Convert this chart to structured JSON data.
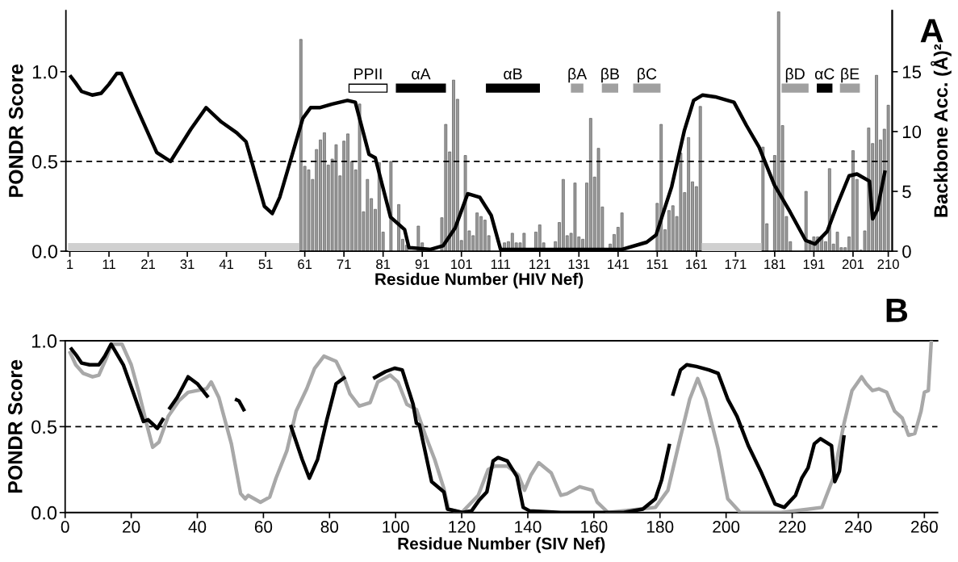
{
  "chart_data": [
    {
      "type": "line",
      "xlabel": "Residue Number (HIV Nef)",
      "ylabel": "PONDR Score",
      "y2label": "Backbone Acc. (Å)²",
      "xlim": [
        0,
        211
      ],
      "xticks": [
        1,
        11,
        21,
        31,
        41,
        51,
        61,
        71,
        81,
        91,
        101,
        111,
        121,
        131,
        141,
        151,
        161,
        171,
        181,
        191,
        201,
        210
      ],
      "ylim": [
        0,
        1.34
      ],
      "yticks": [
        {
          "value": 0,
          "label": "0.0"
        },
        {
          "value": 0.5,
          "label": "0.5"
        },
        {
          "value": 1,
          "label": "1.0"
        }
      ],
      "y2lim": [
        0,
        20.1
      ],
      "y2ticks": [
        0,
        5,
        10,
        15
      ],
      "grid": false,
      "marker": "none",
      "line_style": "solid",
      "annotations": [
        "A"
      ],
      "ref_lines": [
        {
          "axis": "y",
          "value": 0.5,
          "label": null,
          "color": "#000000",
          "line_style": "dashed"
        }
      ],
      "series": [
        {
          "type": "bar",
          "axis": "y2",
          "color": "#9a9a9a",
          "x": [
            60,
            61,
            62,
            63,
            64,
            65,
            66,
            67,
            68,
            69,
            70,
            71,
            72,
            73,
            74,
            75,
            76,
            77,
            78,
            79,
            80,
            81,
            83,
            85,
            86,
            87,
            90,
            91,
            92,
            94,
            96,
            97,
            98,
            99,
            100,
            101,
            102,
            103,
            104,
            105,
            106,
            107,
            108,
            112,
            113,
            114,
            115,
            116,
            117,
            120,
            121,
            122,
            125,
            126,
            127,
            128,
            129,
            130,
            131,
            132,
            133,
            134,
            135,
            136,
            137,
            139,
            140,
            141,
            142,
            151,
            152,
            153,
            154,
            155,
            156,
            157,
            158,
            159,
            160,
            161,
            162,
            178,
            179,
            181,
            182,
            183,
            184,
            185,
            189,
            190,
            191,
            192,
            193,
            194,
            195,
            196,
            197,
            198,
            199,
            200,
            201,
            202,
            203,
            204,
            205,
            206,
            207,
            208,
            209,
            210
          ],
          "values": [
            17.7,
            7.1,
            6.8,
            6.0,
            8.5,
            9.3,
            9.9,
            7.2,
            7.7,
            8.9,
            6.3,
            9.2,
            9.8,
            7.5,
            6.8,
            12.3,
            3.3,
            6.0,
            4.4,
            3.5,
            7.4,
            1.6,
            7.5,
            3.9,
            1.0,
            0.5,
            2.1,
            0.7,
            null,
            null,
            2.8,
            10.6,
            8.3,
            14.3,
            12.7,
            0.9,
            8.0,
            1.7,
            1.3,
            3.2,
            2.9,
            2.6,
            1.3,
            0.7,
            0.8,
            1.5,
            0.7,
            0.7,
            1.5,
            1.6,
            2.2,
            0.7,
            0.8,
            2.4,
            6.0,
            1.3,
            1.5,
            5.7,
            1.2,
            1.0,
            5.7,
            11.1,
            6.2,
            8.6,
            3.7,
            0.6,
            1.4,
            2.0,
            3.2,
            4.0,
            10.6,
            1.8,
            3.4,
            3.8,
            2.9,
            8.2,
            4.9,
            9.5,
            5.8,
            5.4,
            12.1,
            8.7,
            2.3,
            8.0,
            20,
            10.5,
            2.9,
            0.8,
            5.0,
            0.9,
            1.2,
            1.2,
            1.2,
            0.8,
            6.9,
            0.6,
            1.6,
            0.3,
            0.3,
            1.2,
            8.4,
            6.0,
            0.1,
            1.7,
            10.3,
            9.0,
            14.7,
            9.3,
            10.2,
            12.2
          ]
        },
        {
          "color": "#000000",
          "x": [
            1,
            2.4,
            4,
            6.7,
            9,
            11,
            13,
            14.2,
            19.3,
            23.2,
            26.7,
            31.9,
            35.8,
            39.7,
            43.6,
            46,
            50.7,
            52.7,
            54.6,
            60.5,
            62.5,
            64.8,
            68,
            71.9,
            73.9,
            77.4,
            79,
            82.9,
            86.5,
            87.6,
            93.1,
            96.3,
            99.4,
            102.6,
            105.7,
            108.6,
            111,
            126,
            142,
            148.3,
            150.7,
            154.7,
            157.9,
            160.3,
            162.6,
            165.8,
            170.6,
            173.8,
            177,
            180.9,
            184.9,
            188.9,
            191.3,
            194.4,
            196.8,
            200,
            202,
            205.2,
            206,
            207.2,
            209.2
          ],
          "values": [
            0.98,
            0.94,
            0.89,
            0.87,
            0.88,
            0.93,
            0.99,
            0.99,
            0.74,
            0.55,
            0.5,
            0.68,
            0.8,
            0.72,
            0.66,
            0.61,
            0.25,
            0.21,
            0.3,
            0.74,
            0.8,
            0.8,
            0.82,
            0.84,
            0.83,
            0.54,
            0.52,
            0.19,
            0.12,
            0.02,
            0.01,
            0.03,
            0.13,
            0.32,
            0.3,
            0.2,
            0.01,
            0.01,
            0.01,
            0.05,
            0.09,
            0.36,
            0.67,
            0.84,
            0.87,
            0.86,
            0.83,
            0.7,
            0.58,
            0.37,
            0.22,
            0.06,
            0.04,
            0.11,
            0.25,
            0.42,
            0.43,
            0.39,
            0.18,
            0.23,
            0.45
          ]
        }
      ]
    },
    {
      "type": "bar",
      "orientation": "horizontal",
      "categories": [
        null,
        null
      ],
      "xlim": [
        0,
        211
      ],
      "series": [
        {
          "name": "PPII",
          "color": "#ffffff",
          "base": [
            72.3,
            null
          ],
          "values": [
            9.7,
            null
          ]
        },
        {
          "name": "αA",
          "color": "#000000",
          "base": [
            84.4,
            null
          ],
          "values": [
            12.5,
            null
          ]
        },
        {
          "name": "αB",
          "color": "#000000",
          "base": [
            107.4,
            null
          ],
          "values": [
            13.5,
            null
          ]
        },
        {
          "name": "βA",
          "color": "#a0a0a0",
          "base": [
            129.1,
            null
          ],
          "values": [
            2.9,
            null
          ]
        },
        {
          "name": "βB",
          "color": "#a0a0a0",
          "base": [
            137,
            null
          ],
          "values": [
            3.9,
            null
          ]
        },
        {
          "name": "βC",
          "color": "#a0a0a0",
          "base": [
            145,
            null
          ],
          "values": [
            6.7,
            null
          ]
        },
        {
          "name": "βD",
          "color": "#a0a0a0",
          "base": [
            182.9,
            null
          ],
          "values": [
            6.6,
            null
          ]
        },
        {
          "name": "αC",
          "color": "#000000",
          "base": [
            191.9,
            null
          ],
          "values": [
            3.7,
            null
          ]
        },
        {
          "name": "βE",
          "color": "#a0a0a0",
          "base": [
            197.8,
            null
          ],
          "values": [
            4.8,
            null
          ]
        },
        {
          "color": "#d0d0d0",
          "base": [
            null,
            0.7
          ],
          "values": [
            null,
            58.8
          ]
        },
        {
          "color": "#d0d0d0",
          "base": [
            null,
            162.5
          ],
          "values": [
            null,
            15
          ]
        }
      ]
    },
    {
      "type": "line",
      "xlabel": "Residue Number (SIV Nef)",
      "ylabel": "PONDR Score",
      "xlim": [
        0,
        264
      ],
      "xticks": [
        0,
        20,
        40,
        60,
        80,
        100,
        120,
        140,
        160,
        180,
        200,
        220,
        240,
        260
      ],
      "ylim": [
        0,
        1
      ],
      "yticks": [
        {
          "value": 0,
          "label": "0.0"
        },
        {
          "value": 0.5,
          "label": "0.5"
        },
        {
          "value": 1,
          "label": "1.0"
        }
      ],
      "grid": false,
      "marker": "none",
      "line_style": "solid",
      "annotations": [
        "B"
      ],
      "ref_lines": [
        {
          "axis": "y",
          "value": 0.5,
          "label": null,
          "color": "#000000",
          "line_style": "dashed"
        }
      ],
      "series": [
        {
          "color": "#a8a8a8",
          "x": [
            1.3,
            3.2,
            5.5,
            8.3,
            10.2,
            12.5,
            14.1,
            17.2,
            20,
            22.3,
            24.6,
            26.5,
            28.4,
            31.2,
            34.4,
            37.2,
            40,
            42.8,
            44.2,
            46.5,
            50.3,
            53.1,
            54.5,
            55.4,
            59.1,
            61.9,
            63.8,
            67.1,
            69.9,
            73.1,
            75.5,
            78.3,
            82,
            84.3,
            86.2,
            89,
            92.3,
            94.6,
            98.4,
            100.7,
            103.4,
            106.3,
            109,
            111.8,
            114.6,
            116,
            120,
            125,
            128,
            130,
            133.8,
            137.1,
            139,
            141,
            143.3,
            147.1,
            150,
            151.9,
            155.7,
            159.5,
            161,
            164.3,
            178.6,
            182.4,
            186.2,
            189,
            191.4,
            193.8,
            197.6,
            200.5,
            204.3,
            216.7,
            229,
            232.4,
            235.7,
            238.1,
            241,
            242.4,
            244.3,
            246.2,
            248.6,
            251,
            253.3,
            255.2,
            257.1,
            259,
            260,
            261.2,
            262.1
          ],
          "values": [
            0.94,
            0.86,
            0.81,
            0.79,
            0.8,
            0.9,
            0.98,
            0.98,
            0.86,
            0.7,
            0.52,
            0.38,
            0.41,
            0.56,
            0.65,
            0.7,
            0.71,
            0.72,
            0.76,
            0.67,
            0.4,
            0.11,
            0.08,
            0.1,
            0.06,
            0.09,
            0.2,
            0.36,
            0.59,
            0.72,
            0.84,
            0.91,
            0.88,
            0.79,
            0.69,
            0.62,
            0.64,
            0.76,
            0.8,
            0.76,
            0.63,
            0.6,
            0.45,
            0.31,
            0.14,
            0.02,
            0.0,
            0.1,
            0.25,
            0.27,
            0.27,
            0.22,
            0.13,
            0.22,
            0.29,
            0.23,
            0.1,
            0.11,
            0.15,
            0.13,
            0.06,
            0.0,
            0.03,
            0.13,
            0.44,
            0.66,
            0.78,
            0.66,
            0.37,
            0.08,
            0.0,
            0.0,
            0.03,
            0.2,
            0.52,
            0.71,
            0.79,
            0.75,
            0.71,
            0.72,
            0.7,
            0.59,
            0.55,
            0.45,
            0.46,
            0.59,
            0.7,
            0.71,
            1.0
          ]
        },
        {
          "color": "#000000",
          "x": [
            1.6,
            3.6,
            5,
            7.4,
            10.2,
            12,
            13.9,
            17.6,
            20.4,
            23.7,
            25.1,
            27.9,
            29.8,
            30.6,
            31.4,
            33.9,
            37.2,
            40,
            43.3,
            47,
            51.4,
            52.6,
            54.3,
            61,
            68.2,
            71.7,
            73.9,
            76.4,
            79.2,
            82,
            84.8,
            89,
            93.2,
            96.9,
            99.7,
            102,
            105.3,
            106.3,
            107.2,
            110.9,
            114.6,
            115.7,
            120.2,
            123,
            125.2,
            127.6,
            129.5,
            131,
            133.8,
            136.7,
            138.6,
            140.5,
            150,
            169,
            174.8,
            178.6,
            180.5,
            182.9,
            183.3,
            183.8,
            186.2,
            188.1,
            191,
            194.8,
            197.6,
            200.5,
            203.3,
            206.7,
            210.5,
            214.8,
            217.6,
            221,
            222.9,
            224.8,
            226.7,
            228.6,
            231.9,
            232.9,
            234.3,
            235.7
          ],
          "values": [
            0.96,
            0.91,
            0.87,
            0.86,
            0.86,
            0.91,
            0.98,
            0.86,
            0.71,
            0.53,
            0.54,
            0.49,
            0.55,
            null,
            0.6,
            0.67,
            0.79,
            0.75,
            0.67,
            null,
            0.66,
            0.65,
            0.59,
            null,
            0.51,
            0.31,
            0.2,
            0.31,
            0.54,
            0.75,
            0.79,
            null,
            0.78,
            0.82,
            0.84,
            0.83,
            0.63,
            0.52,
            0.51,
            0.18,
            0.12,
            0.02,
            0.0,
            0.01,
            0.07,
            0.12,
            0.3,
            0.32,
            0.3,
            0.21,
            0.03,
            0.01,
            0.0,
            0.0,
            0.02,
            0.08,
            0.19,
            0.4,
            null,
            0.68,
            0.83,
            0.86,
            0.85,
            0.83,
            0.81,
            0.66,
            0.56,
            0.39,
            0.24,
            0.05,
            0.03,
            0.1,
            0.2,
            0.26,
            0.4,
            0.43,
            0.39,
            0.18,
            0.24,
            0.45
          ]
        }
      ]
    }
  ]
}
